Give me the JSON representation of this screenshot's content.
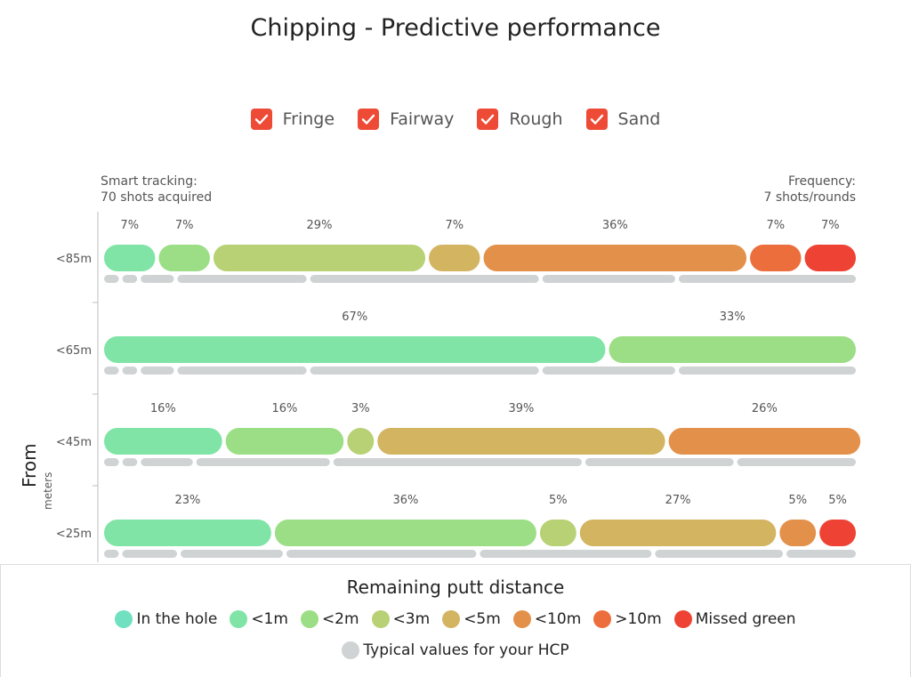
{
  "title": "Chipping - Predictive performance",
  "filters": [
    {
      "label": "Fringe",
      "checked": true
    },
    {
      "label": "Fairway",
      "checked": true
    },
    {
      "label": "Rough",
      "checked": true
    },
    {
      "label": "Sand",
      "checked": true
    }
  ],
  "info_left": {
    "line1": "Smart tracking:",
    "line2": "70 shots acquired"
  },
  "info_right": {
    "line1": "Frequency:",
    "line2": "7 shots/rounds"
  },
  "axis": {
    "label": "From",
    "unit": "meters"
  },
  "legend": {
    "title": "Remaining putt distance",
    "items": [
      {
        "label": "In the hole",
        "color": "#6fe0c0"
      },
      {
        "label": "<1m",
        "color": "#7fe4a6"
      },
      {
        "label": "<2m",
        "color": "#9bde86"
      },
      {
        "label": "<3m",
        "color": "#b7d174"
      },
      {
        "label": "<5m",
        "color": "#d3b461"
      },
      {
        "label": "<10m",
        "color": "#e3914a"
      },
      {
        "label": ">10m",
        "color": "#ec6e3c"
      },
      {
        "label": "Missed green",
        "color": "#ee4334"
      }
    ],
    "typical": {
      "label": "Typical values for your HCP",
      "color": "#cfd3d4"
    }
  },
  "chart_data": {
    "type": "bar",
    "stacked": "horizontal-100%",
    "categories": [
      "<85m",
      "<65m",
      "<45m",
      "<25m"
    ],
    "segments": [
      {
        "category": "<85m",
        "values": [
          {
            "bin": "<1m",
            "pct": 7,
            "label": "7%"
          },
          {
            "bin": "<2m",
            "pct": 7,
            "label": "7%"
          },
          {
            "bin": "<3m",
            "pct": 29,
            "label": "29%"
          },
          {
            "bin": "<5m",
            "pct": 7,
            "label": "7%"
          },
          {
            "bin": "<10m",
            "pct": 36,
            "label": "36%"
          },
          {
            "bin": ">10m",
            "pct": 7,
            "label": "7%"
          },
          {
            "bin": "Missed green",
            "pct": 7,
            "label": "7%"
          }
        ]
      },
      {
        "category": "<65m",
        "values": [
          {
            "bin": "<1m",
            "pct": 67,
            "label": "67%"
          },
          {
            "bin": "<2m",
            "pct": 33,
            "label": "33%"
          }
        ]
      },
      {
        "category": "<45m",
        "values": [
          {
            "bin": "<1m",
            "pct": 16,
            "label": "16%"
          },
          {
            "bin": "<2m",
            "pct": 16,
            "label": "16%"
          },
          {
            "bin": "<3m",
            "pct": 3,
            "label": "3%"
          },
          {
            "bin": "<5m",
            "pct": 39,
            "label": "39%"
          },
          {
            "bin": "<10m",
            "pct": 26,
            "label": "26%"
          }
        ]
      },
      {
        "category": "<25m",
        "values": [
          {
            "bin": "<1m",
            "pct": 23,
            "label": "23%"
          },
          {
            "bin": "<2m",
            "pct": 36,
            "label": "36%"
          },
          {
            "bin": "<3m",
            "pct": 5,
            "label": "5%"
          },
          {
            "bin": "<5m",
            "pct": 27,
            "label": "27%"
          },
          {
            "bin": "<10m",
            "pct": 5,
            "label": "5%"
          },
          {
            "bin": "Missed green",
            "pct": 5,
            "label": "5%"
          }
        ]
      }
    ],
    "typical": [
      {
        "category": "<85m",
        "pct": [
          2,
          2,
          4.5,
          17.5,
          31,
          18,
          24
        ]
      },
      {
        "category": "<65m",
        "pct": [
          2,
          2,
          4.5,
          17.5,
          31,
          18,
          24
        ]
      },
      {
        "category": "<45m",
        "pct": [
          2,
          2,
          7,
          18,
          33.5,
          20,
          16
        ]
      },
      {
        "category": "<25m",
        "pct": [
          2,
          7.5,
          14,
          26,
          23.5,
          17.5,
          9.5
        ]
      }
    ]
  }
}
